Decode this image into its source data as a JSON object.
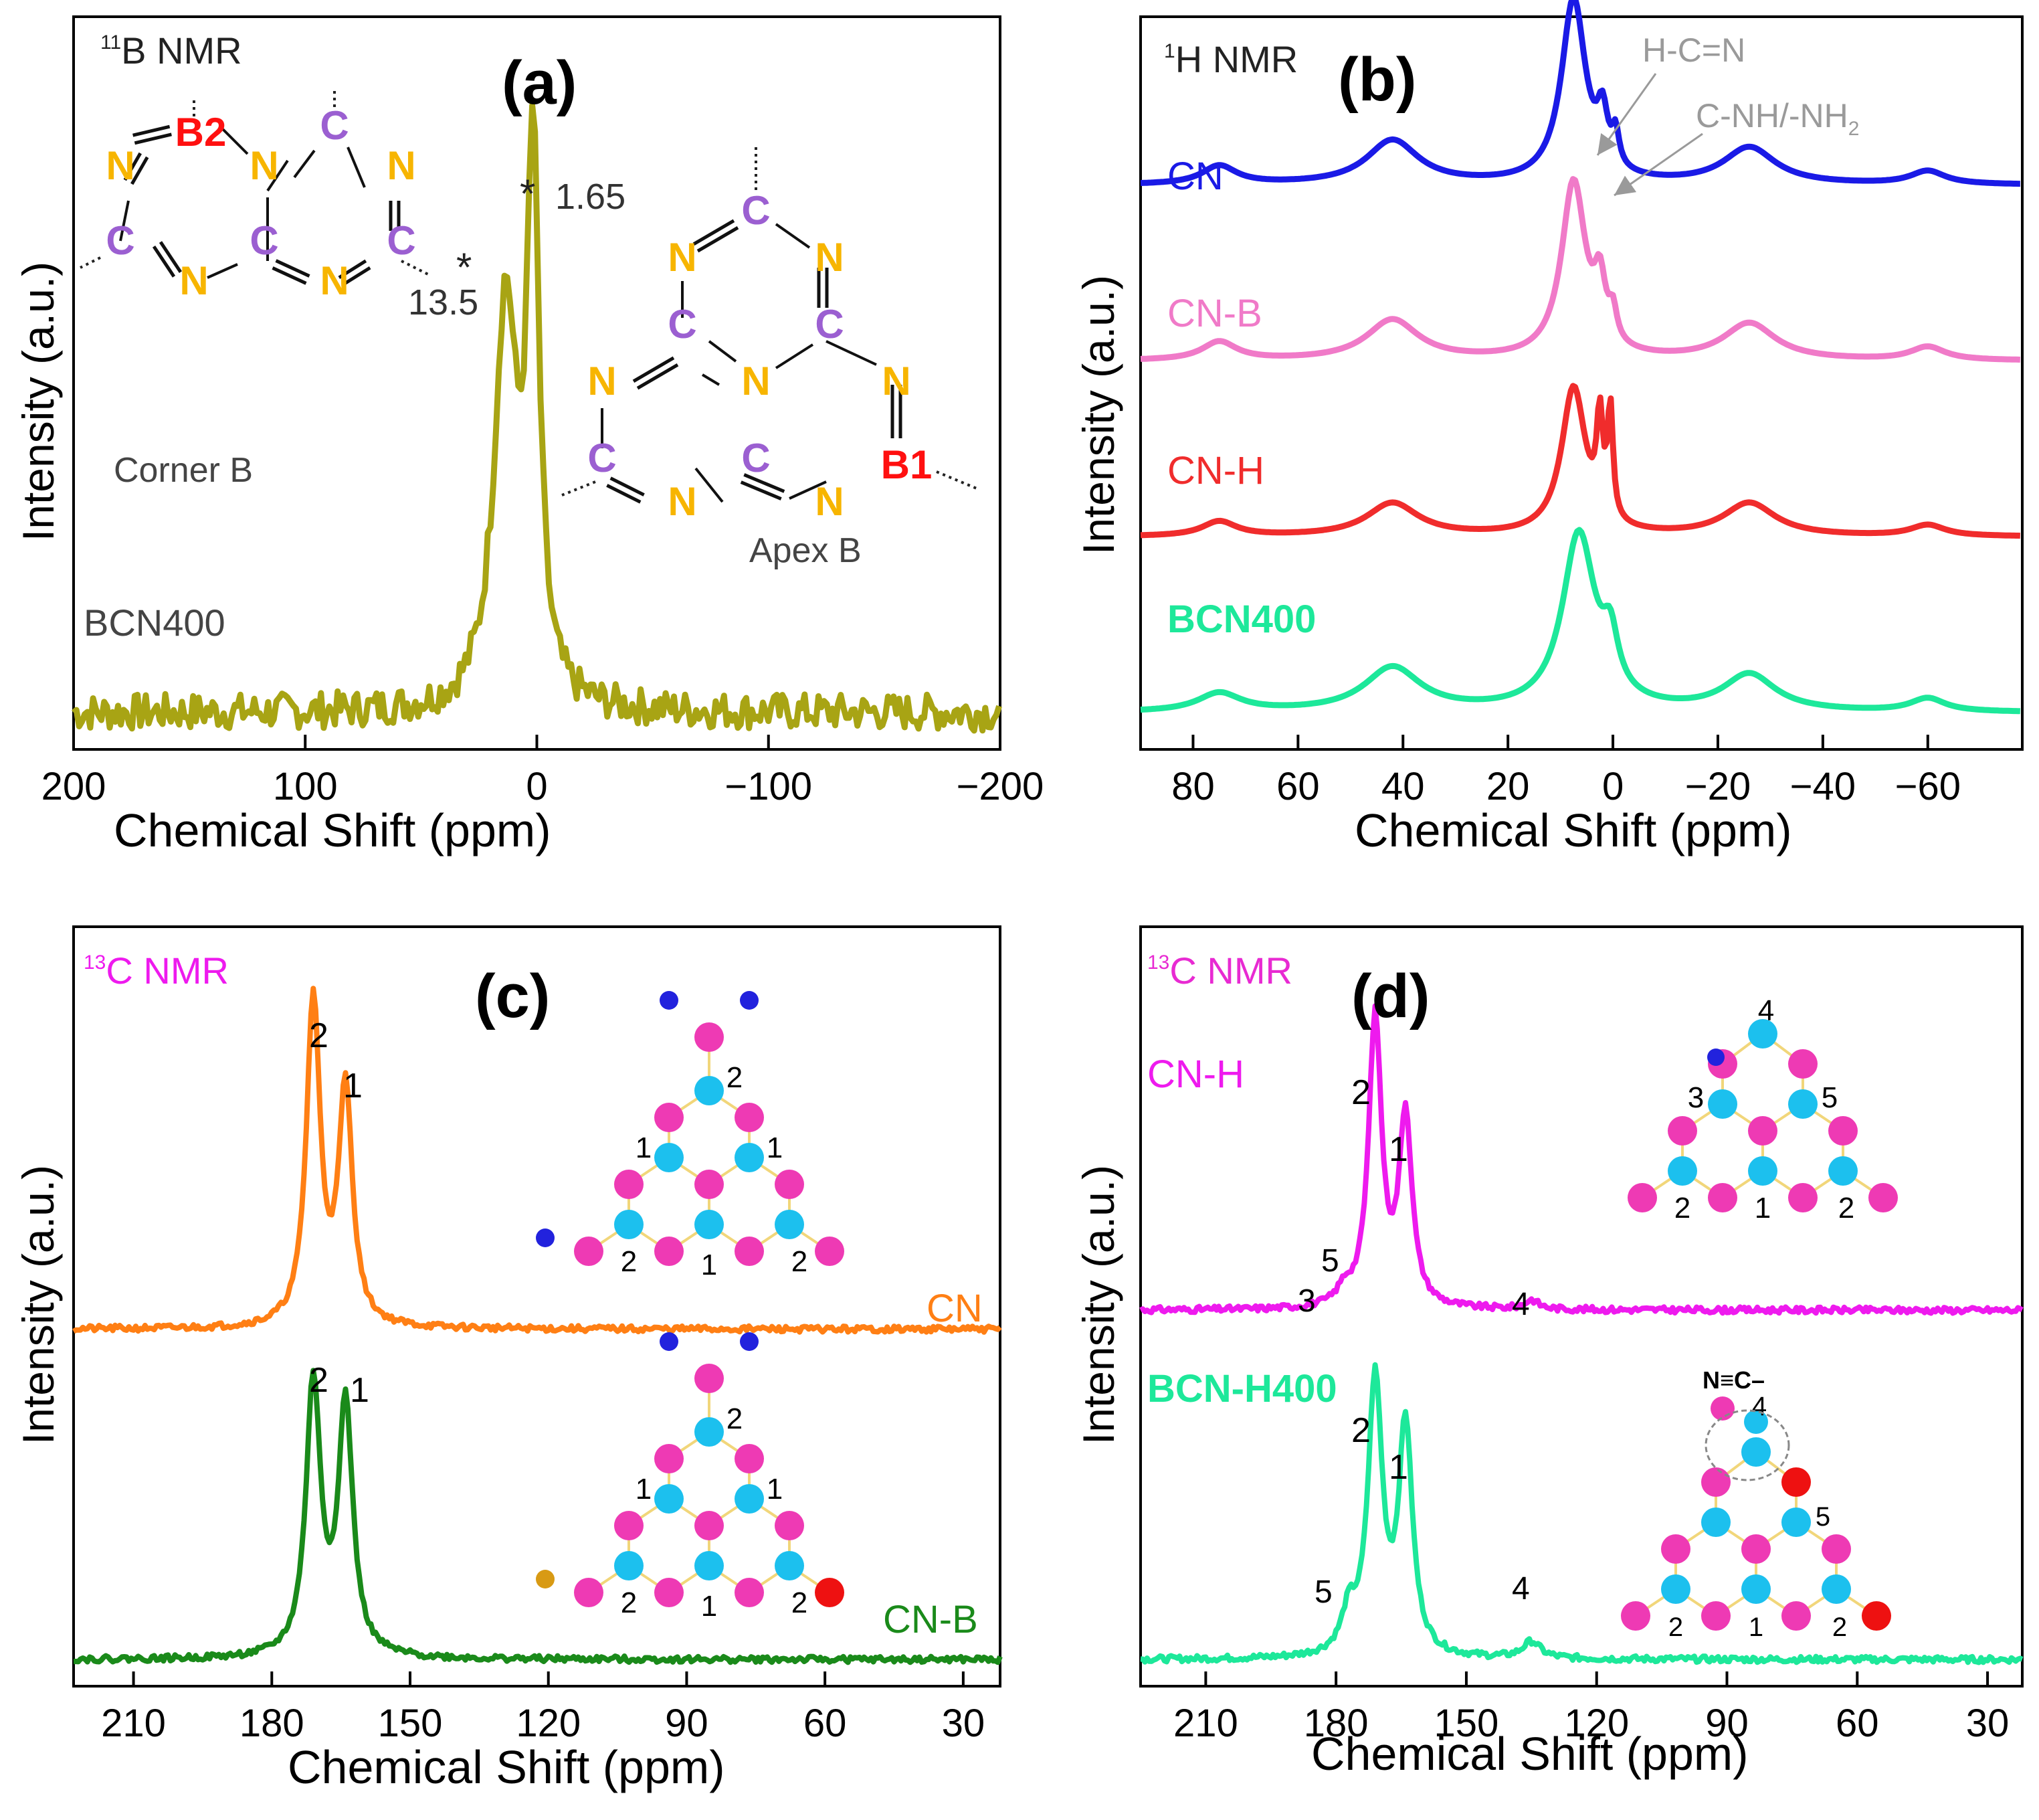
{
  "colors": {
    "olive": "#a8a414",
    "blue": "#1a1ae6",
    "pink": "#f07ac8",
    "red": "#f02c2c",
    "mint": "#1de89a",
    "orange": "#ff7f14",
    "darkgreen": "#1a8a1a",
    "magenta": "#ee1aee",
    "hr_magenta": "#e82ad2",
    "node_magenta": "#ee3ab4",
    "node_cyan": "#1cc0ee",
    "node_blue": "#2222dd",
    "node_red": "#ee1111",
    "node_orange": "#d89a14",
    "atom_N": "#f7b500",
    "atom_C": "#9b5fd1",
    "atom_B": "#ff1010",
    "annot_gray": "#9a9a9a",
    "text_gray": "#444444"
  },
  "chart_data": [
    {
      "panel": "a",
      "type": "line",
      "label": "(a)",
      "title": "11B NMR",
      "title_sup": "11",
      "title_rest": "B NMR",
      "xlabel": "Chemical Shift (ppm)",
      "ylabel": "Intensity (a.u.)",
      "xlim": [
        200,
        -200
      ],
      "xticks": [
        200,
        100,
        0,
        -100,
        -200
      ],
      "xtick_labels": [
        "200",
        "100",
        "0",
        "−100",
        "−200"
      ],
      "series": [
        {
          "name": "BCN400",
          "baseline": 0.05,
          "noise": 0.025,
          "peaks": [
            {
              "center": 13.5,
              "height": 0.55,
              "width": 6
            },
            {
              "center": 1.65,
              "height": 0.72,
              "width": 3.2
            }
          ]
        }
      ],
      "ylim": [
        0,
        1
      ],
      "annotations": [
        "13.5",
        "1.65"
      ],
      "peak_marker": "*",
      "sample_label": "BCN400",
      "corner_label": "Corner B",
      "apex_label": "Apex B",
      "atoms": {
        "N": "N",
        "C": "C",
        "B1": "B1",
        "B2": "B2"
      }
    },
    {
      "panel": "b",
      "type": "line",
      "label": "(b)",
      "title_sup": "1",
      "title_rest": "H NMR",
      "xlabel": "Chemical Shift (ppm)",
      "ylabel": "Intensity (a.u.)",
      "xlim": [
        90,
        -78
      ],
      "xticks": [
        80,
        60,
        40,
        20,
        0,
        -20,
        -40,
        -60
      ],
      "xtick_labels": [
        "80",
        "60",
        "40",
        "20",
        "0",
        "−20",
        "−40",
        "−60"
      ],
      "ylim": [
        0,
        1
      ],
      "annotations": {
        "hcn": "H-C=N",
        "cnh": "C-NH/-NH",
        "cnh_sub": "2"
      },
      "series": [
        {
          "name": "CN",
          "offset": 0.77,
          "peaks": [
            {
              "center": 75,
              "height": 0.025,
              "width": 4
            },
            {
              "center": 42,
              "height": 0.06,
              "width": 6
            },
            {
              "center": 7.5,
              "height": 0.25,
              "width": 2.8
            },
            {
              "center": 2,
              "height": 0.07,
              "width": 1.2
            },
            {
              "center": -0.5,
              "height": 0.045,
              "width": 0.8
            },
            {
              "center": -26,
              "height": 0.05,
              "width": 6
            },
            {
              "center": -60,
              "height": 0.018,
              "width": 4
            }
          ]
        },
        {
          "name": "CN-B",
          "offset": 0.53,
          "peaks": [
            {
              "center": 75,
              "height": 0.025,
              "width": 4
            },
            {
              "center": 42,
              "height": 0.055,
              "width": 6
            },
            {
              "center": 7.5,
              "height": 0.24,
              "width": 2.8
            },
            {
              "center": 2.5,
              "height": 0.08,
              "width": 1.3
            },
            {
              "center": 0,
              "height": 0.04,
              "width": 0.9
            },
            {
              "center": -26,
              "height": 0.05,
              "width": 6
            },
            {
              "center": -60,
              "height": 0.018,
              "width": 4
            }
          ]
        },
        {
          "name": "CN-H",
          "offset": 0.29,
          "peaks": [
            {
              "center": 75,
              "height": 0.02,
              "width": 4
            },
            {
              "center": 42,
              "height": 0.045,
              "width": 6
            },
            {
              "center": 7.5,
              "height": 0.2,
              "width": 2.8
            },
            {
              "center": 2.5,
              "height": 0.13,
              "width": 0.7
            },
            {
              "center": 0.5,
              "height": 0.15,
              "width": 0.6
            },
            {
              "center": -26,
              "height": 0.045,
              "width": 6
            },
            {
              "center": -60,
              "height": 0.015,
              "width": 4
            }
          ]
        },
        {
          "name": "BCN400",
          "offset": 0.05,
          "peaks": [
            {
              "center": 75,
              "height": 0.025,
              "width": 5
            },
            {
              "center": 42,
              "height": 0.06,
              "width": 6.5
            },
            {
              "center": 6.5,
              "height": 0.24,
              "width": 3.8
            },
            {
              "center": 0.5,
              "height": 0.07,
              "width": 1.8
            },
            {
              "center": -26,
              "height": 0.05,
              "width": 6
            },
            {
              "center": -60,
              "height": 0.018,
              "width": 4
            }
          ]
        }
      ]
    },
    {
      "panel": "c",
      "type": "line",
      "label": "(c)",
      "title_sup": "13",
      "title_rest": "C NMR",
      "xlabel": "Chemical Shift (ppm)",
      "ylabel": "Intensity (a.u.)",
      "xlim": [
        223,
        22
      ],
      "xticks": [
        210,
        180,
        150,
        120,
        90,
        60,
        30
      ],
      "xtick_labels": [
        "210",
        "180",
        "150",
        "120",
        "90",
        "60",
        "30"
      ],
      "ylim": [
        0,
        1
      ],
      "series": [
        {
          "name": "CN",
          "offset": 0.47,
          "noise": 0.004,
          "peaks": [
            {
              "center": 171,
              "height": 0.43,
              "width": 1.8
            },
            {
              "center": 164,
              "height": 0.31,
              "width": 1.8
            }
          ]
        },
        {
          "name": "CN-B",
          "offset": 0.035,
          "noise": 0.004,
          "peaks": [
            {
              "center": 171,
              "height": 0.36,
              "width": 1.9
            },
            {
              "center": 164,
              "height": 0.33,
              "width": 1.9
            }
          ]
        }
      ],
      "peak_labels": [
        "2",
        "1",
        "2",
        "1"
      ],
      "site_labels": [
        "1",
        "2"
      ]
    },
    {
      "panel": "d",
      "type": "line",
      "label": "(d)",
      "title_sup": "13",
      "title_rest": "C NMR",
      "xlabel": "Chemical Shift (ppm)",
      "ylabel": "Intensity (a.u.)",
      "xlim": [
        225,
        22
      ],
      "xticks": [
        210,
        180,
        150,
        120,
        90,
        60,
        30
      ],
      "xtick_labels": [
        "210",
        "180",
        "150",
        "120",
        "90",
        "60",
        "30"
      ],
      "ylim": [
        0,
        1
      ],
      "series": [
        {
          "name": "CN-H",
          "offset": 0.495,
          "noise": 0.004,
          "peaks": [
            {
              "center": 171,
              "height": 0.38,
              "width": 1.8
            },
            {
              "center": 164,
              "height": 0.25,
              "width": 1.8
            },
            {
              "center": 178,
              "height": 0.02,
              "width": 2
            },
            {
              "center": 135,
              "height": 0.012,
              "width": 2
            }
          ]
        },
        {
          "name": "BCN-H400",
          "offset": 0.035,
          "noise": 0.004,
          "peaks": [
            {
              "center": 171,
              "height": 0.36,
              "width": 2.0
            },
            {
              "center": 164,
              "height": 0.3,
              "width": 1.9
            },
            {
              "center": 177,
              "height": 0.05,
              "width": 2
            },
            {
              "center": 135,
              "height": 0.022,
              "width": 2.5
            }
          ]
        }
      ],
      "peak_labels": [
        "5",
        "3",
        "2",
        "1",
        "4",
        "5",
        "2",
        "1",
        "4"
      ],
      "site_labels": [
        "1",
        "2",
        "3",
        "4",
        "5"
      ],
      "nitrile_label": "N≡C–"
    }
  ]
}
